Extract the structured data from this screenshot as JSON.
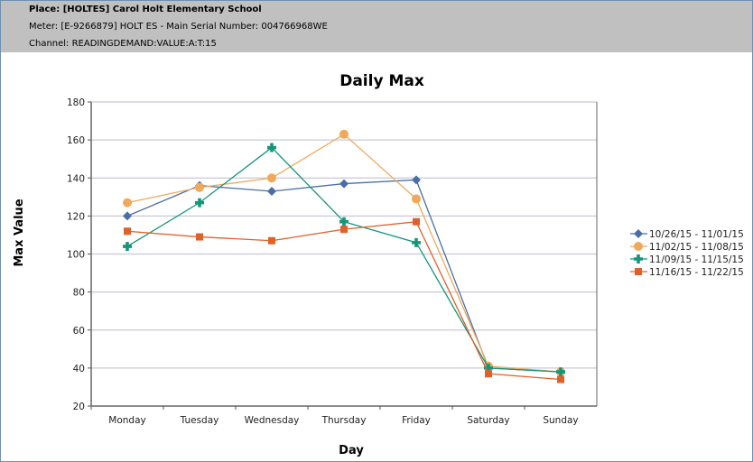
{
  "header": {
    "place": "Place: [HOLTES]   Carol Holt Elementary School",
    "meter": "Meter: [E-9266879] HOLT ES - Main    Serial Number: 004766968WE",
    "channel": "Channel: READINGDEMAND:VALUE:A:T:15"
  },
  "chart_data": {
    "type": "line",
    "title": "Daily Max",
    "xlabel": "Day",
    "ylabel": "Max Value",
    "ylim": [
      20,
      180
    ],
    "yticks": [
      20,
      40,
      60,
      80,
      100,
      120,
      140,
      160,
      180
    ],
    "grid": true,
    "legend": "right",
    "categories": [
      "Monday",
      "Tuesday",
      "Wednesday",
      "Thursday",
      "Friday",
      "Saturday",
      "Sunday"
    ],
    "series": [
      {
        "name": "10/26/15 - 11/01/15",
        "color": "#4a6fa5",
        "marker": "diamond",
        "values": [
          120,
          136,
          133,
          137,
          139,
          40,
          38
        ]
      },
      {
        "name": "11/02/15 - 11/08/15",
        "color": "#f0a95a",
        "marker": "circle",
        "values": [
          127,
          135,
          140,
          163,
          129,
          41,
          38
        ]
      },
      {
        "name": "11/09/15 - 11/15/15",
        "color": "#14967a",
        "marker": "plus",
        "values": [
          104,
          127,
          156,
          117,
          106,
          40,
          38
        ]
      },
      {
        "name": "11/16/15 - 11/22/15",
        "color": "#e0602a",
        "marker": "square",
        "values": [
          112,
          109,
          107,
          113,
          117,
          37,
          34
        ]
      }
    ]
  }
}
